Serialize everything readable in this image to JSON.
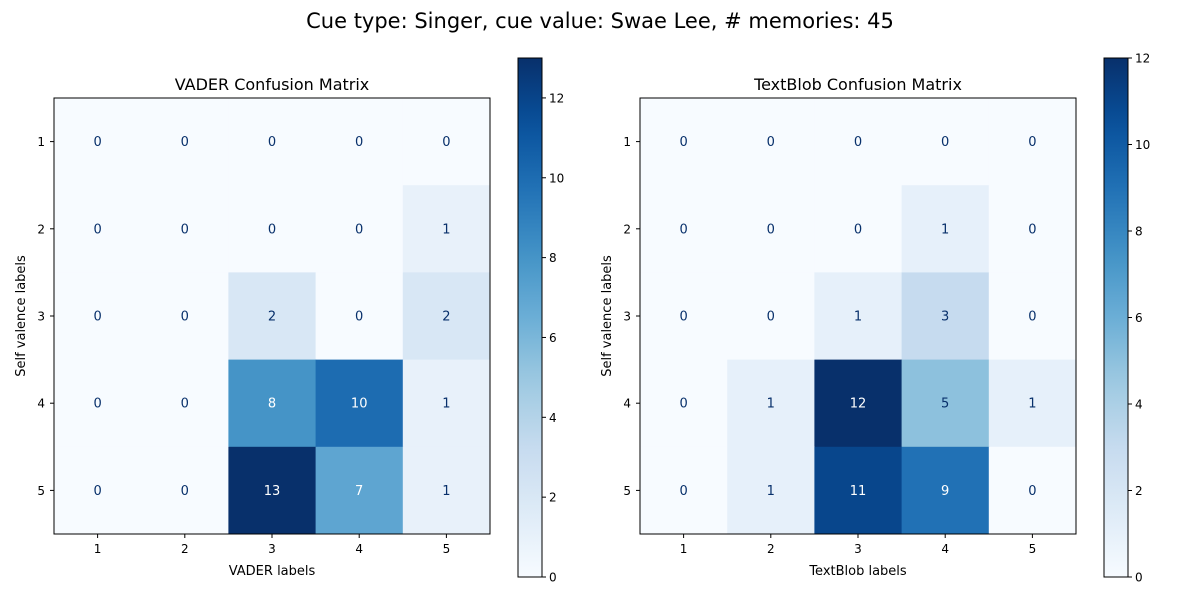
{
  "figure": {
    "suptitle": "Cue type: Singer, cue value: Swae Lee, # memories: 45"
  },
  "chart_data": [
    {
      "type": "heatmap",
      "title": "VADER Confusion Matrix",
      "xlabel": "VADER labels",
      "ylabel": "Self valence labels",
      "x_categories": [
        "1",
        "2",
        "3",
        "4",
        "5"
      ],
      "y_categories": [
        "1",
        "2",
        "3",
        "4",
        "5"
      ],
      "values": [
        [
          0,
          0,
          0,
          0,
          0
        ],
        [
          0,
          0,
          0,
          0,
          1
        ],
        [
          0,
          0,
          2,
          0,
          2
        ],
        [
          0,
          0,
          8,
          10,
          1
        ],
        [
          0,
          0,
          13,
          7,
          1
        ]
      ],
      "colormap": "Blues",
      "vmin": 0,
      "vmax": 13,
      "colorbar_ticks": [
        0,
        2,
        4,
        6,
        8,
        10,
        12
      ]
    },
    {
      "type": "heatmap",
      "title": "TextBlob Confusion Matrix",
      "xlabel": "TextBlob labels",
      "ylabel": "Self valence labels",
      "x_categories": [
        "1",
        "2",
        "3",
        "4",
        "5"
      ],
      "y_categories": [
        "1",
        "2",
        "3",
        "4",
        "5"
      ],
      "values": [
        [
          0,
          0,
          0,
          0,
          0
        ],
        [
          0,
          0,
          0,
          1,
          0
        ],
        [
          0,
          0,
          1,
          3,
          0
        ],
        [
          0,
          1,
          12,
          5,
          1
        ],
        [
          0,
          1,
          11,
          9,
          0
        ]
      ],
      "colormap": "Blues",
      "vmin": 0,
      "vmax": 12,
      "colorbar_ticks": [
        0,
        2,
        4,
        6,
        8,
        10,
        12
      ]
    }
  ]
}
